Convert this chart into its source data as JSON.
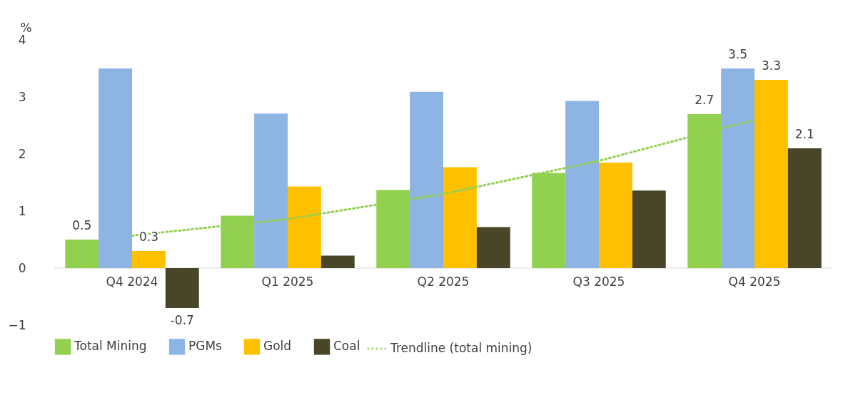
{
  "chart_data": {
    "type": "bar",
    "ylabel": "%",
    "categories": [
      "Q4 2024",
      "Q1 2025",
      "Q2 2025",
      "Q3 2025",
      "Q4 2025"
    ],
    "series": [
      {
        "name": "Total Mining",
        "color": "#92d050",
        "values": [
          0.5,
          0.92,
          1.37,
          1.67,
          2.7
        ],
        "value_labels": [
          "0.5",
          null,
          null,
          null,
          "2.7"
        ]
      },
      {
        "name": "PGMs",
        "color": "#8eb4e3",
        "values": [
          3.5,
          2.71,
          3.09,
          2.93,
          3.5
        ],
        "value_labels": [
          null,
          null,
          null,
          null,
          "3.5"
        ]
      },
      {
        "name": "Gold",
        "color": "#ffc000",
        "values": [
          0.3,
          1.43,
          1.77,
          1.85,
          3.3
        ],
        "value_labels": [
          "0.3",
          null,
          null,
          null,
          "3.3"
        ]
      },
      {
        "name": "Coal",
        "color": "#494529",
        "values": [
          -0.7,
          0.22,
          0.72,
          1.36,
          2.1
        ],
        "value_labels": [
          "-0.7",
          null,
          null,
          null,
          "2.1"
        ]
      },
      {
        "name": "Trendline (total mining)",
        "type": "line",
        "line_style": "dotted",
        "color": "#92d050",
        "values": [
          0.57,
          0.86,
          1.3,
          1.88,
          2.6
        ]
      }
    ],
    "ylim": [
      -1,
      4
    ],
    "yticks": [
      -1,
      0,
      1,
      2,
      3,
      4
    ],
    "grid": false,
    "legend": "bottom"
  }
}
